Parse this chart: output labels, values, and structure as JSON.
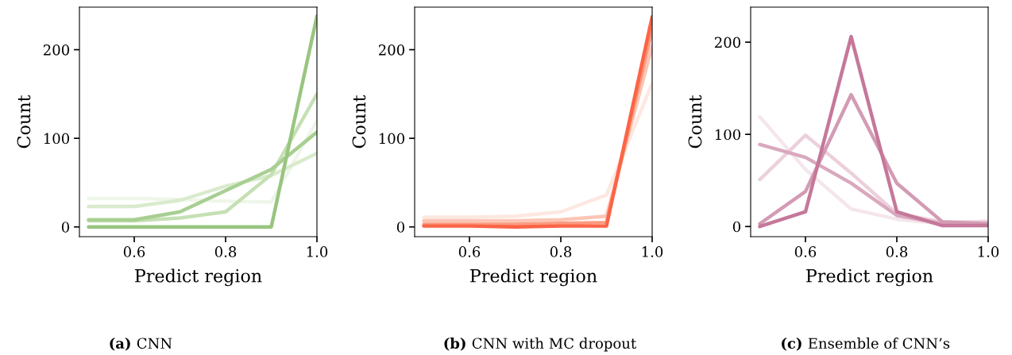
{
  "chart_data": [
    {
      "type": "line",
      "xlabel": "Predict region",
      "ylabel": "Count",
      "x": [
        0.5,
        0.6,
        0.7,
        0.8,
        0.9,
        1.0
      ],
      "xlim": [
        0.48,
        1.0
      ],
      "ylim": [
        -11,
        248
      ],
      "xticks": [
        {
          "value": 0.6,
          "label": "0.6"
        },
        {
          "value": 0.8,
          "label": "0.8"
        },
        {
          "value": 1,
          "label": "1.0"
        }
      ],
      "yticks": [
        0,
        100,
        200
      ],
      "annotations": [
        "(a) CNN"
      ],
      "series": [
        {
          "color": "#eef6e9",
          "values": [
            32,
            32,
            31,
            29,
            28,
            120
          ]
        },
        {
          "color": "#d9ebcd",
          "values": [
            23,
            23,
            30,
            46,
            58,
            83
          ]
        },
        {
          "color": "#c5e0b4",
          "values": [
            7,
            7,
            10,
            17,
            59,
            150
          ]
        },
        {
          "color": "#a8cf92",
          "values": [
            8,
            8,
            17,
            41,
            65,
            107
          ]
        },
        {
          "color": "#98c57f",
          "values": [
            0,
            0,
            0,
            0,
            0,
            238
          ]
        }
      ]
    },
    {
      "type": "line",
      "xlabel": "Predict region",
      "ylabel": "Count",
      "x": [
        0.5,
        0.6,
        0.7,
        0.8,
        0.9,
        1.0
      ],
      "xlim": [
        0.48,
        1.0
      ],
      "ylim": [
        -11,
        248
      ],
      "xticks": [
        {
          "value": 0.6,
          "label": "0.6"
        },
        {
          "value": 0.8,
          "label": "0.8"
        },
        {
          "value": 1,
          "label": "1.0"
        }
      ],
      "yticks": [
        0,
        100,
        200
      ],
      "annotations": [
        "(b) CNN with MC dropout"
      ],
      "series": [
        {
          "color": "#fde8e1",
          "values": [
            11,
            11,
            12,
            17,
            36,
            162
          ]
        },
        {
          "color": "#fcc5b5",
          "values": [
            7,
            7,
            7,
            8,
            12,
            204
          ]
        },
        {
          "color": "#fb9a80",
          "values": [
            3,
            3,
            3,
            4,
            5,
            223
          ]
        },
        {
          "color": "#fc6446",
          "values": [
            1,
            1,
            0,
            1,
            1,
            237
          ]
        }
      ]
    },
    {
      "type": "line",
      "xlabel": "Predict region",
      "ylabel": "Count",
      "x": [
        0.5,
        0.6,
        0.7,
        0.8,
        0.9,
        1.0
      ],
      "xlim": [
        0.48,
        1.0
      ],
      "ylim": [
        -11,
        238
      ],
      "xticks": [
        {
          "value": 0.6,
          "label": "0.6"
        },
        {
          "value": 0.8,
          "label": "0.8"
        },
        {
          "value": 1,
          "label": "1.0"
        }
      ],
      "yticks": [
        0,
        100,
        200
      ],
      "annotations": [
        "(c) Ensemble of CNN’s"
      ],
      "series": [
        {
          "color": "#f5e6ec",
          "values": [
            119,
            62,
            19,
            8,
            3,
            6
          ]
        },
        {
          "color": "#ecd0dc",
          "values": [
            51,
            99,
            58,
            14,
            5,
            5
          ]
        },
        {
          "color": "#d9a8be",
          "values": [
            89,
            75,
            47,
            12,
            3,
            3
          ]
        },
        {
          "color": "#d39bb4",
          "values": [
            3,
            38,
            143,
            47,
            5,
            3
          ]
        },
        {
          "color": "#c5789a",
          "values": [
            0,
            16,
            206,
            16,
            1,
            1
          ]
        }
      ]
    }
  ]
}
